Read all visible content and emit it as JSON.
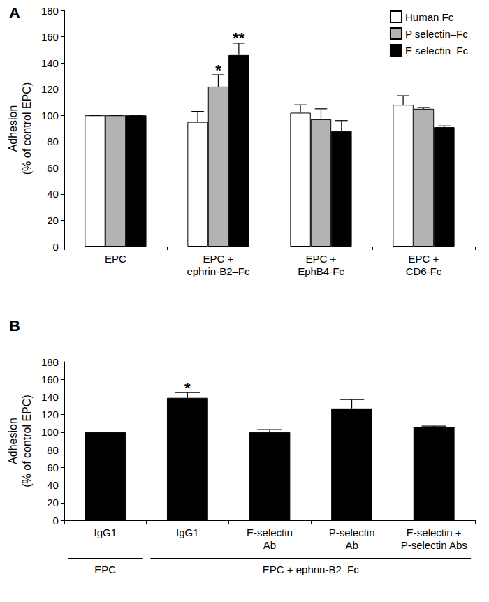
{
  "chart_data": [
    {
      "type": "bar",
      "title": "A",
      "categories": [
        "EPC",
        "EPC +\nephrin-B2–Fc",
        "EPC +\nEphB4-Fc",
        "EPC +\nCD6-Fc"
      ],
      "y_label": "Adhesion\n(% of control EPC)",
      "series": [
        {
          "name": "Human Fc",
          "color": "#ffffff",
          "values": [
            100,
            95,
            102,
            108
          ],
          "errors": [
            0,
            8,
            6,
            7
          ]
        },
        {
          "name": "P selectin–Fc",
          "color": "#b3b3b3",
          "values": [
            100,
            122,
            97,
            105
          ],
          "errors": [
            0,
            9,
            8,
            1
          ]
        },
        {
          "name": "E selectin–Fc",
          "color": "#000000",
          "values": [
            100,
            146,
            88,
            91
          ],
          "errors": [
            0,
            9,
            8,
            1
          ]
        }
      ],
      "annotations": [
        {
          "series": "P selectin–Fc",
          "category": 1,
          "text": "*"
        },
        {
          "series": "E selectin–Fc",
          "category": 1,
          "text": "**"
        }
      ],
      "ylim": [
        0,
        180
      ],
      "yticks": [
        0,
        20,
        40,
        60,
        80,
        100,
        120,
        140,
        160,
        180
      ],
      "grid": false,
      "legend": "top-right"
    },
    {
      "type": "bar",
      "title": "B",
      "categories": [
        "IgG1",
        "IgG1",
        "E-selectin\nAb",
        "P-selectin\nAb",
        "E-selectin +\nP-selectin Abs"
      ],
      "y_label": "Adhesion\n(% of control EPC)",
      "series": [
        {
          "name": "Adhesion",
          "color": "#000000",
          "values": [
            100,
            139,
            100,
            127,
            106
          ],
          "errors": [
            0,
            6,
            3,
            10,
            1
          ]
        }
      ],
      "annotations": [
        {
          "series": "Adhesion",
          "category": 1,
          "text": "*"
        }
      ],
      "groups": [
        {
          "label": "EPC",
          "from": 0,
          "to": 0
        },
        {
          "label": "EPC + ephrin-B2–Fc",
          "from": 1,
          "to": 4
        }
      ],
      "ylim": [
        0,
        180
      ],
      "yticks": [
        0,
        20,
        40,
        60,
        80,
        100,
        120,
        140,
        160,
        180
      ],
      "grid": false
    }
  ]
}
